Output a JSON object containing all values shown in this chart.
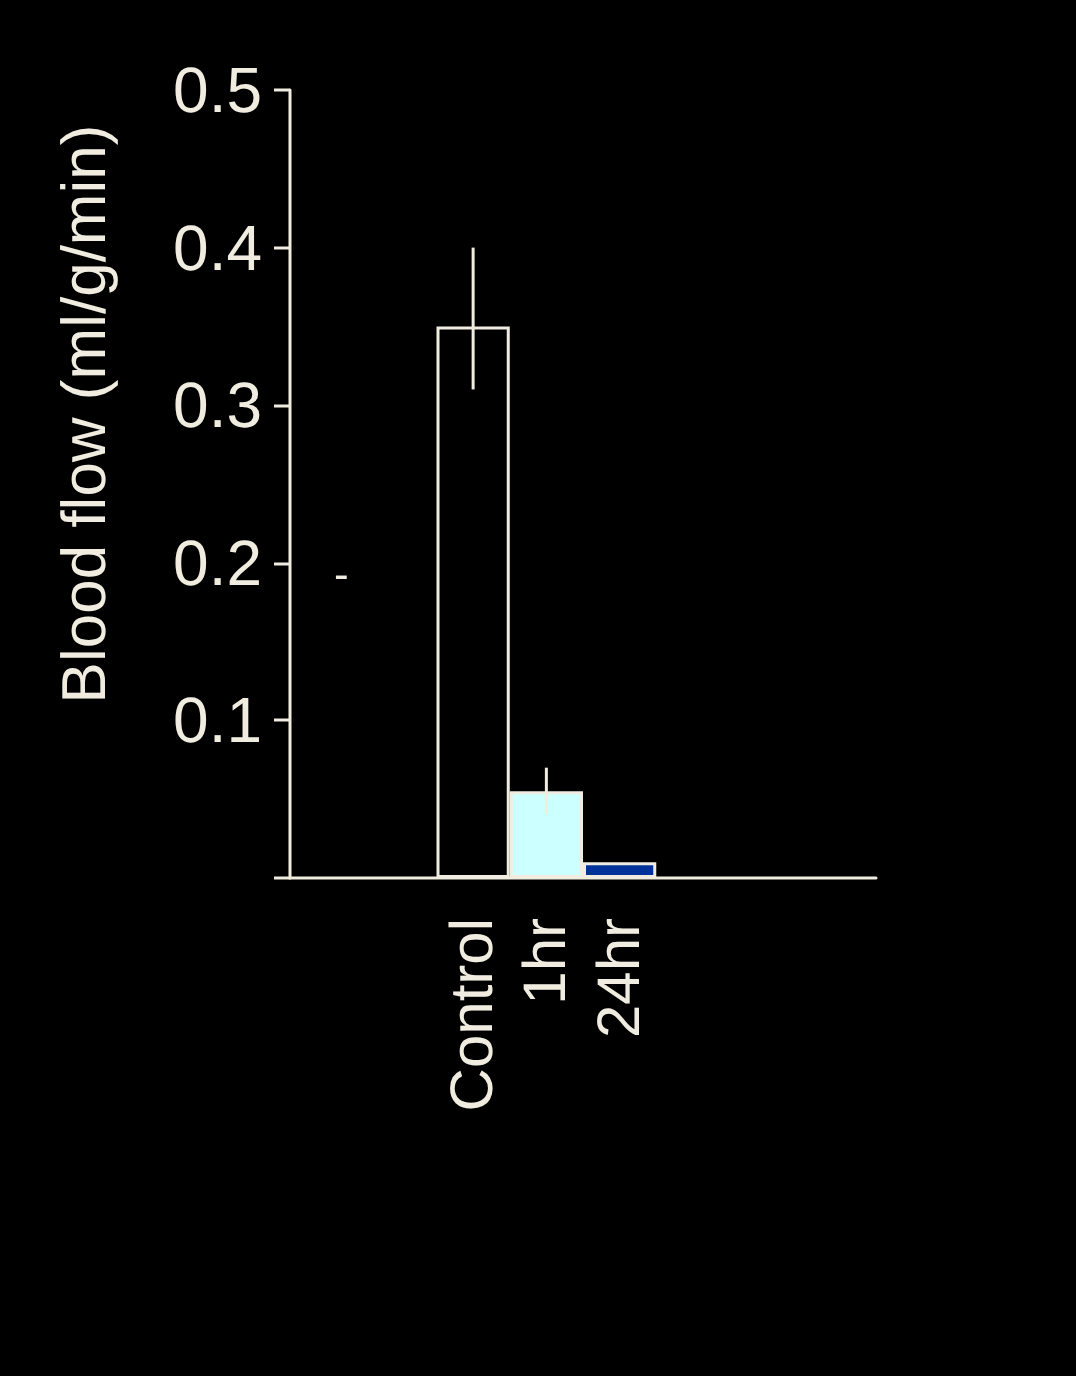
{
  "chart_data": {
    "type": "bar",
    "ylabel": "Blood flow (ml/g/min)",
    "categories": [
      null,
      null,
      "Control",
      "1hr",
      "24hr",
      null,
      null,
      null
    ],
    "values": [
      null,
      null,
      0.35,
      0.055,
      0.01,
      null,
      null,
      null
    ],
    "colors": [
      "#000000",
      "#000000",
      "#000000",
      "#ccffff",
      "#003399",
      "#000000",
      "#000000",
      "#000000"
    ],
    "errors": [
      null,
      null,
      [
        0.31,
        0.4
      ],
      [
        0.04,
        0.07
      ],
      null,
      null,
      null,
      null
    ],
    "ylim": [
      0,
      0.5
    ],
    "yticks": [
      {
        "value": 0,
        "label": null
      },
      0.1,
      0.2,
      0.3,
      0.4,
      0.5
    ],
    "annotations": [
      "-"
    ],
    "grid": false
  }
}
